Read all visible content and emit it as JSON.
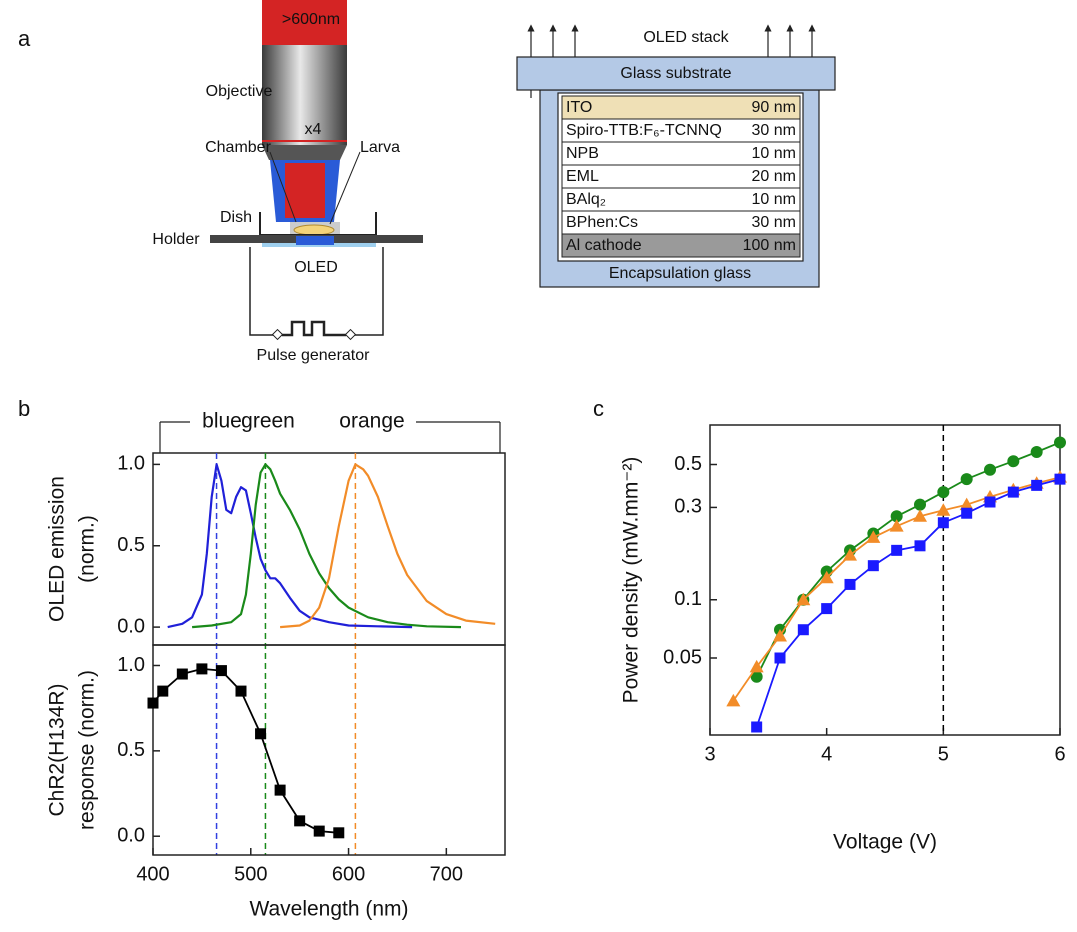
{
  "panel_labels": [
    "a",
    "b",
    "c"
  ],
  "setup": {
    "filter": ">600nm",
    "objective": "Objective",
    "magnification": "x4",
    "chamber": "Chamber",
    "larva": "Larva",
    "dish": "Dish",
    "holder": "Holder",
    "oled": "OLED",
    "pulse_generator": "Pulse generator"
  },
  "oled_stack": {
    "title": "OLED stack",
    "substrate": "Glass substrate",
    "layers": [
      {
        "name": "ITO",
        "thickness": "90 nm"
      },
      {
        "name": "Spiro-TTB:F₆-TCNNQ",
        "thickness": "30 nm"
      },
      {
        "name": "NPB",
        "thickness": "10 nm"
      },
      {
        "name": "EML",
        "thickness": "20 nm"
      },
      {
        "name": "BAlq₂",
        "thickness": "10 nm"
      },
      {
        "name": "BPhen:Cs",
        "thickness": "30 nm"
      },
      {
        "name": "Al cathode",
        "thickness": "100 nm"
      }
    ],
    "encapsulation": "Encapsulation glass"
  },
  "chart_data": [
    {
      "type": "line",
      "ylabel": [
        "OLED emission",
        "(norm.)"
      ],
      "xlim": [
        400,
        760
      ],
      "ylim": [
        -0.11,
        1.07
      ],
      "yticks": [
        {
          "value": 0,
          "label": "0.0"
        },
        {
          "value": 0.5,
          "label": "0.5"
        },
        {
          "value": 1,
          "label": "1.0"
        }
      ],
      "vlines": [
        {
          "x": 465,
          "color": "#3040e0"
        },
        {
          "x": 515,
          "color": "#1a8a1a"
        },
        {
          "x": 607,
          "color": "#f28c28"
        }
      ],
      "series": [
        {
          "name": "blue",
          "color": "#2020d8",
          "x": [
            415,
            430,
            440,
            450,
            455,
            460,
            465,
            470,
            475,
            480,
            485,
            490,
            495,
            500,
            505,
            510,
            515,
            520,
            525,
            530,
            540,
            550,
            560,
            580,
            600,
            630,
            665
          ],
          "values": [
            0,
            0.02,
            0.06,
            0.2,
            0.45,
            0.8,
            1.0,
            0.9,
            0.72,
            0.7,
            0.8,
            0.86,
            0.84,
            0.7,
            0.55,
            0.42,
            0.35,
            0.3,
            0.3,
            0.27,
            0.18,
            0.1,
            0.06,
            0.03,
            0.01,
            0.005,
            0
          ]
        },
        {
          "name": "green",
          "color": "#1a8a1a",
          "x": [
            440,
            460,
            480,
            490,
            495,
            500,
            505,
            510,
            515,
            520,
            525,
            530,
            540,
            550,
            560,
            570,
            580,
            590,
            600,
            620,
            640,
            660,
            680,
            715
          ],
          "values": [
            0,
            0.01,
            0.03,
            0.08,
            0.2,
            0.45,
            0.75,
            0.95,
            1.0,
            0.97,
            0.9,
            0.82,
            0.72,
            0.6,
            0.45,
            0.33,
            0.24,
            0.17,
            0.12,
            0.06,
            0.03,
            0.015,
            0.005,
            0
          ]
        },
        {
          "name": "orange",
          "color": "#f28c28",
          "x": [
            530,
            550,
            560,
            570,
            580,
            590,
            600,
            607,
            615,
            620,
            630,
            640,
            650,
            660,
            680,
            700,
            720,
            750
          ],
          "values": [
            0,
            0.01,
            0.04,
            0.12,
            0.3,
            0.62,
            0.9,
            1.0,
            0.97,
            0.93,
            0.8,
            0.62,
            0.45,
            0.32,
            0.16,
            0.08,
            0.04,
            0.02
          ]
        }
      ]
    },
    {
      "type": "line",
      "ylabel": [
        "ChR2(H134R)",
        "response (norm.)"
      ],
      "xlabel": "Wavelength (nm)",
      "xlim": [
        400,
        760
      ],
      "ylim": [
        -0.11,
        1.12
      ],
      "xticks": [
        400,
        500,
        600,
        700
      ],
      "yticks": [
        {
          "value": 0,
          "label": "0.0"
        },
        {
          "value": 0.5,
          "label": "0.5"
        },
        {
          "value": 1,
          "label": "1.0"
        }
      ],
      "series": [
        {
          "color": "#000000",
          "marker": "square",
          "x": [
            400,
            410,
            430,
            450,
            470,
            490,
            510,
            530,
            550,
            570,
            590
          ],
          "values": [
            0.78,
            0.85,
            0.95,
            0.98,
            0.97,
            0.85,
            0.6,
            0.27,
            0.09,
            0.03,
            0.02
          ]
        }
      ]
    },
    {
      "type": "line",
      "ylabel": [
        "Power density (mW.mm⁻²)"
      ],
      "xlabel": "Voltage (V)",
      "log_y": true,
      "xlim": [
        3,
        6
      ],
      "ylim": [
        0.02,
        0.8
      ],
      "xticks": [
        3,
        4,
        5,
        6
      ],
      "yticks": [
        0.05,
        0.1,
        0.3,
        0.5
      ],
      "vlines": [
        {
          "x": 5,
          "color": "#000000"
        }
      ],
      "series": [
        {
          "color": "#1a8a1a",
          "marker": "circle",
          "x": [
            3.4,
            3.6,
            3.8,
            4.0,
            4.2,
            4.4,
            4.6,
            4.8,
            5.0,
            5.2,
            5.4,
            5.6,
            5.8,
            6.0
          ],
          "values": [
            0.04,
            0.07,
            0.1,
            0.14,
            0.18,
            0.22,
            0.27,
            0.31,
            0.36,
            0.42,
            0.47,
            0.52,
            0.58,
            0.65
          ]
        },
        {
          "color": "#f28c28",
          "marker": "triangle",
          "x": [
            3.2,
            3.4,
            3.6,
            3.8,
            4.0,
            4.2,
            4.4,
            4.6,
            4.8,
            5.0,
            5.2,
            5.4,
            5.6,
            5.8,
            6.0
          ],
          "values": [
            0.03,
            0.045,
            0.065,
            0.1,
            0.13,
            0.17,
            0.21,
            0.24,
            0.27,
            0.29,
            0.31,
            0.34,
            0.37,
            0.4,
            0.43
          ]
        },
        {
          "color": "#1a1aff",
          "marker": "square",
          "x": [
            3.4,
            3.6,
            3.8,
            4.0,
            4.2,
            4.4,
            4.6,
            4.8,
            5.0,
            5.2,
            5.4,
            5.6,
            5.8,
            6.0
          ],
          "values": [
            0.022,
            0.05,
            0.07,
            0.09,
            0.12,
            0.15,
            0.18,
            0.19,
            0.25,
            0.28,
            0.32,
            0.36,
            0.39,
            0.42
          ]
        }
      ]
    }
  ]
}
